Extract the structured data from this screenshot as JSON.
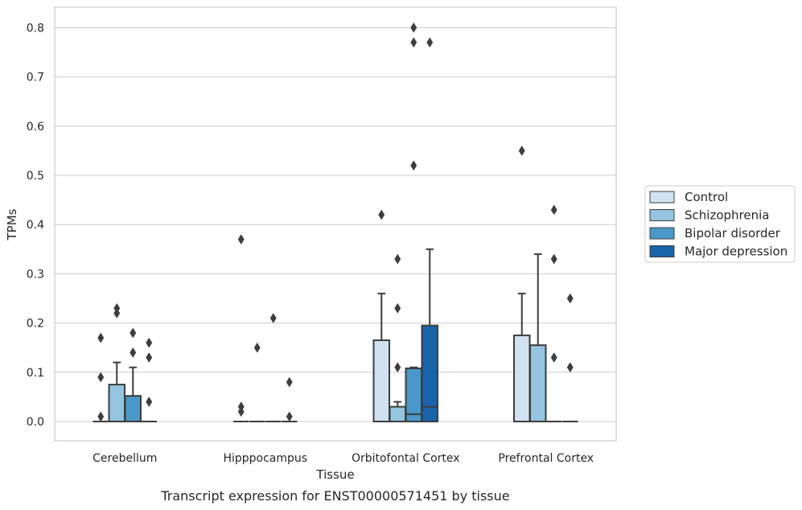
{
  "caption": "Transcript expression for ENST00000571451 by tissue",
  "colors": {
    "Control": "#d0e1f2",
    "Schizophrenia": "#94c4df",
    "Bipolar disorder": "#4a98c9",
    "Major depression": "#1764ab",
    "edge": "#3d3d3d",
    "grid": "#cccccc",
    "frame": "#cccccc"
  },
  "chart_data": {
    "type": "box",
    "xlabel": "Tissue",
    "ylabel": "TPMs",
    "ylim": [
      -0.04,
      0.84
    ],
    "yticks": [
      0.0,
      0.1,
      0.2,
      0.3,
      0.4,
      0.5,
      0.6,
      0.7,
      0.8
    ],
    "ytick_labels": [
      "0.0",
      "0.1",
      "0.2",
      "0.3",
      "0.4",
      "0.5",
      "0.6",
      "0.7",
      "0.8"
    ],
    "grid": "horizontal",
    "legend_position": "right",
    "categories": [
      "Cerebellum",
      "Hipppocampus",
      "Orbitofontal Cortex",
      "Prefrontal Cortex"
    ],
    "series": [
      {
        "name": "Control",
        "boxes": [
          {
            "q1": 0,
            "median": 0,
            "q3": 0,
            "whislo": 0,
            "whishi": 0,
            "fliers": [
              0.01,
              0.09,
              0.17
            ]
          },
          {
            "q1": 0,
            "median": 0,
            "q3": 0,
            "whislo": 0,
            "whishi": 0,
            "fliers": [
              0.02,
              0.03,
              0.37
            ]
          },
          {
            "q1": 0,
            "median": 0,
            "q3": 0.165,
            "whislo": 0,
            "whishi": 0.26,
            "fliers": [
              0.42
            ]
          },
          {
            "q1": 0,
            "median": 0,
            "q3": 0.175,
            "whislo": 0,
            "whishi": 0.26,
            "fliers": [
              0.55
            ]
          }
        ]
      },
      {
        "name": "Schizophrenia",
        "boxes": [
          {
            "q1": 0,
            "median": 0,
            "q3": 0.075,
            "whislo": 0,
            "whishi": 0.12,
            "fliers": [
              0.22,
              0.23
            ]
          },
          {
            "q1": 0,
            "median": 0,
            "q3": 0,
            "whislo": 0,
            "whishi": 0,
            "fliers": [
              0.15
            ]
          },
          {
            "q1": 0,
            "median": 0,
            "q3": 0.03,
            "whislo": 0,
            "whishi": 0.04,
            "fliers": [
              0.11,
              0.23,
              0.33
            ]
          },
          {
            "q1": 0,
            "median": 0,
            "q3": 0.155,
            "whislo": 0,
            "whishi": 0.34,
            "fliers": []
          }
        ]
      },
      {
        "name": "Bipolar disorder",
        "boxes": [
          {
            "q1": 0,
            "median": 0,
            "q3": 0.052,
            "whislo": 0,
            "whishi": 0.11,
            "fliers": [
              0.14,
              0.18
            ]
          },
          {
            "q1": 0,
            "median": 0,
            "q3": 0,
            "whislo": 0,
            "whishi": 0,
            "fliers": [
              0.21
            ]
          },
          {
            "q1": 0,
            "median": 0.015,
            "q3": 0.108,
            "whislo": 0,
            "whishi": 0.11,
            "fliers": [
              0.52,
              0.77,
              0.8
            ]
          },
          {
            "q1": 0,
            "median": 0,
            "q3": 0,
            "whislo": 0,
            "whishi": 0,
            "fliers": [
              0.13,
              0.33,
              0.43
            ]
          }
        ]
      },
      {
        "name": "Major depression",
        "boxes": [
          {
            "q1": 0,
            "median": 0,
            "q3": 0,
            "whislo": 0,
            "whishi": 0,
            "fliers": [
              0.04,
              0.13,
              0.16
            ]
          },
          {
            "q1": 0,
            "median": 0,
            "q3": 0,
            "whislo": 0,
            "whishi": 0,
            "fliers": [
              0.01,
              0.08
            ]
          },
          {
            "q1": 0,
            "median": 0.03,
            "q3": 0.195,
            "whislo": 0,
            "whishi": 0.35,
            "fliers": [
              0.77
            ]
          },
          {
            "q1": 0,
            "median": 0,
            "q3": 0,
            "whislo": 0,
            "whishi": 0,
            "fliers": [
              0.11,
              0.25
            ]
          }
        ]
      }
    ]
  }
}
